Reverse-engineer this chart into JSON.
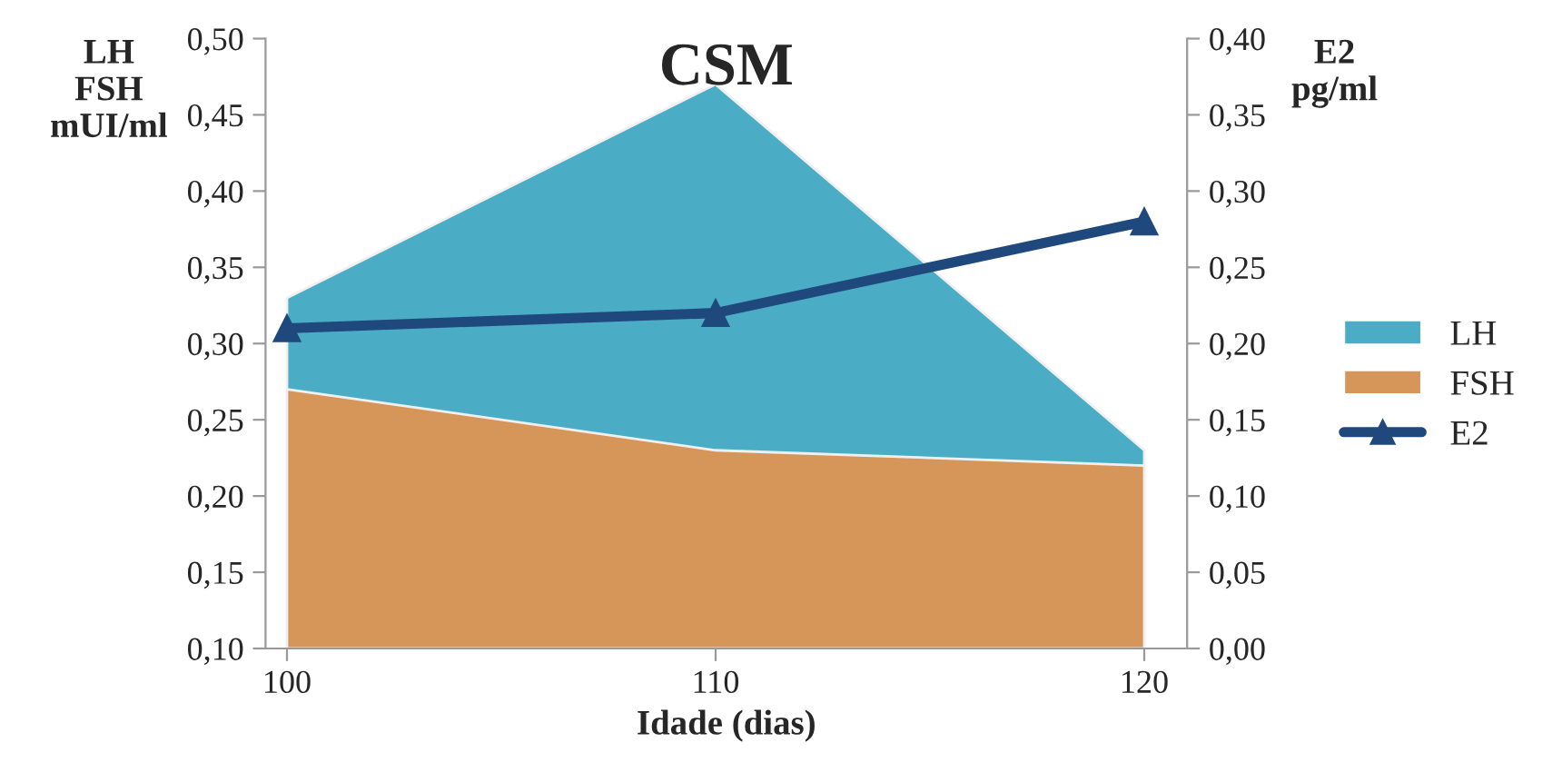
{
  "chart_data": {
    "type": "area",
    "title": "CSM",
    "xlabel": "Idade (dias)",
    "ylabel": "LH\nFSH\nmUI/ml",
    "y2label": "E2\npg/ml",
    "x": [
      100,
      110,
      120
    ],
    "xlim": [
      99.5,
      121
    ],
    "xticks": [
      100,
      110,
      120
    ],
    "ylim": [
      0.1,
      0.5
    ],
    "yticks": [
      {
        "value": 0.1,
        "label": "0,10"
      },
      {
        "value": 0.15,
        "label": "0,15"
      },
      {
        "value": 0.2,
        "label": "0,20"
      },
      {
        "value": 0.25,
        "label": "0,25"
      },
      {
        "value": 0.3,
        "label": "0,30"
      },
      {
        "value": 0.35,
        "label": "0,35"
      },
      {
        "value": 0.4,
        "label": "0,40"
      },
      {
        "value": 0.45,
        "label": "0,45"
      },
      {
        "value": 0.5,
        "label": "0,50"
      }
    ],
    "y2lim": [
      0,
      0.4
    ],
    "y2ticks": [
      {
        "value": 0,
        "label": "0,00"
      },
      {
        "value": 0.05,
        "label": "0,05"
      },
      {
        "value": 0.1,
        "label": "0,10"
      },
      {
        "value": 0.15,
        "label": "0,15"
      },
      {
        "value": 0.2,
        "label": "0,20"
      },
      {
        "value": 0.25,
        "label": "0,25"
      },
      {
        "value": 0.3,
        "label": "0,30"
      },
      {
        "value": 0.35,
        "label": "0,35"
      },
      {
        "value": 0.4,
        "label": "0,40"
      }
    ],
    "series": [
      {
        "name": "LH",
        "color": "#4bacc6",
        "values": [
          0.33,
          0.47,
          0.23
        ]
      },
      {
        "name": "FSH",
        "color": "#d6965a",
        "values": [
          0.27,
          0.23,
          0.22
        ]
      },
      {
        "name": "E2",
        "type": "line",
        "axis": "y2",
        "color": "#1f497d",
        "marker": "triangle",
        "values": [
          0.21,
          0.22,
          0.28
        ]
      }
    ],
    "legend": "right",
    "grid": false
  }
}
